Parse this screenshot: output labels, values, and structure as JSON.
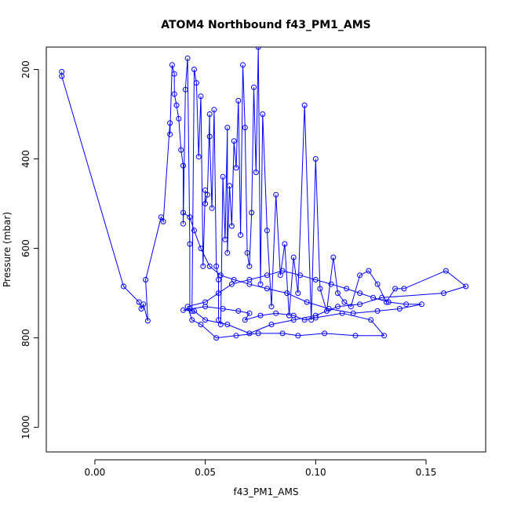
{
  "chart_data": {
    "type": "line",
    "title": "ATOM4 Northbound f43_PM1_AMS",
    "xlabel": "f43_PM1_AMS",
    "ylabel": "Pressure (mbar)",
    "xlim": [
      -0.022,
      0.177
    ],
    "ylim": [
      1055,
      150
    ],
    "y_reversed": true,
    "grid": false,
    "legend": "none",
    "marker": "open-circle",
    "color": "#0000ff",
    "x_ticks": [
      0.0,
      0.05,
      0.1,
      0.15
    ],
    "x_tick_labels": [
      "0.00",
      "0.05",
      "0.10",
      "0.15"
    ],
    "y_ticks": [
      200,
      400,
      600,
      800,
      1000
    ],
    "y_tick_labels": [
      "200",
      "400",
      "600",
      "800",
      "1000"
    ],
    "series": [
      {
        "x": [
          -0.015,
          -0.015,
          0.013,
          0.02,
          0.021,
          0.022,
          0.024,
          0.023,
          0.03,
          0.031,
          0.034,
          0.034,
          0.035,
          0.036,
          0.036,
          0.037,
          0.038,
          0.039,
          0.04,
          0.04,
          0.041,
          0.042,
          0.043,
          0.043,
          0.044,
          0.045,
          0.046,
          0.047,
          0.048,
          0.049,
          0.05,
          0.05,
          0.051,
          0.052,
          0.052,
          0.053,
          0.054,
          0.055,
          0.056,
          0.056,
          0.057,
          0.058,
          0.059,
          0.06,
          0.06,
          0.061,
          0.062,
          0.063,
          0.064,
          0.065,
          0.066,
          0.067,
          0.068,
          0.069,
          0.07,
          0.071,
          0.072,
          0.073,
          0.074,
          0.075,
          0.076,
          0.078,
          0.08,
          0.082,
          0.084,
          0.086,
          0.088,
          0.09,
          0.092,
          0.095,
          0.098,
          0.1,
          0.102,
          0.105,
          0.108,
          0.11,
          0.113,
          0.116,
          0.12,
          0.124,
          0.128,
          0.132,
          0.136,
          0.14,
          0.159,
          0.168,
          0.158,
          0.13,
          0.12,
          0.11,
          0.1,
          0.09,
          0.08,
          0.07,
          0.06,
          0.05,
          0.045,
          0.04,
          0.05,
          0.058,
          0.065,
          0.07,
          0.068,
          0.075,
          0.082,
          0.09,
          0.095,
          0.1,
          0.112,
          0.125,
          0.131,
          0.118,
          0.104,
          0.092,
          0.085,
          0.074,
          0.064,
          0.055,
          0.048,
          0.044,
          0.042,
          0.05,
          0.056,
          0.062,
          0.07,
          0.078,
          0.085,
          0.093,
          0.1,
          0.107,
          0.114,
          0.12,
          0.126,
          0.133,
          0.141,
          0.148,
          0.138,
          0.128,
          0.117,
          0.106,
          0.096,
          0.087,
          0.078,
          0.07,
          0.063,
          0.057,
          0.052,
          0.048,
          0.045,
          0.043,
          0.04
        ],
        "y": [
          205,
          215,
          685,
          720,
          735,
          725,
          762,
          670,
          530,
          540,
          320,
          345,
          190,
          210,
          255,
          280,
          310,
          380,
          415,
          545,
          245,
          175,
          590,
          735,
          740,
          200,
          230,
          395,
          260,
          640,
          470,
          500,
          480,
          300,
          350,
          510,
          290,
          640,
          670,
          760,
          770,
          440,
          580,
          330,
          610,
          460,
          550,
          360,
          420,
          270,
          570,
          190,
          330,
          610,
          640,
          520,
          240,
          430,
          150,
          680,
          300,
          560,
          730,
          480,
          660,
          590,
          750,
          620,
          700,
          280,
          760,
          400,
          690,
          740,
          620,
          700,
          720,
          730,
          660,
          650,
          680,
          720,
          690,
          690,
          650,
          685,
          700,
          710,
          725,
          730,
          750,
          760,
          770,
          790,
          770,
          760,
          740,
          738,
          730,
          735,
          740,
          745,
          760,
          750,
          745,
          750,
          760,
          755,
          745,
          760,
          795,
          795,
          790,
          795,
          790,
          790,
          795,
          800,
          770,
          760,
          730,
          720,
          700,
          680,
          670,
          660,
          650,
          660,
          670,
          680,
          690,
          700,
          710,
          720,
          725,
          725,
          735,
          740,
          745,
          735,
          720,
          700,
          690,
          680,
          670,
          660,
          640,
          600,
          560,
          530,
          520
        ]
      }
    ]
  }
}
